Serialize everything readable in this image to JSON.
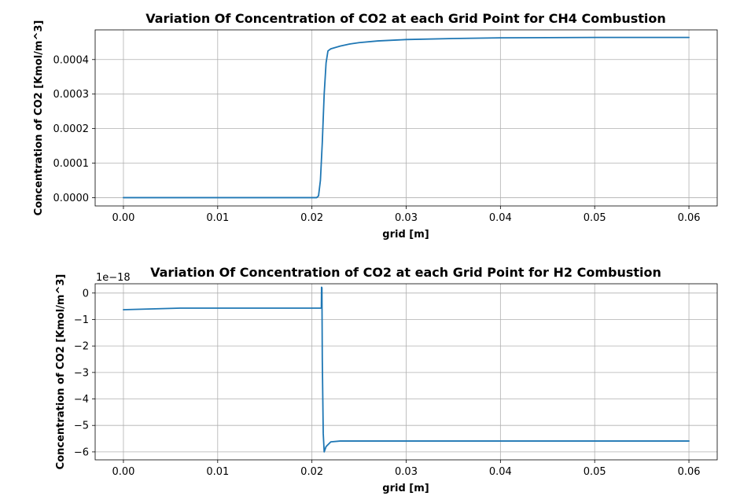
{
  "chart_data": [
    {
      "type": "line",
      "title": "Variation Of Concentration of CO2 at each Grid Point for CH4 Combustion",
      "xlabel": "grid [m]",
      "ylabel": "Concentration of CO2 [Kmol/m^3]",
      "xlim": [
        -0.003,
        0.063
      ],
      "ylim": [
        -2.4e-05,
        0.000486
      ],
      "xticks": [
        0.0,
        0.01,
        0.02,
        0.03,
        0.04,
        0.05,
        0.06
      ],
      "xtick_labels": [
        "0.00",
        "0.01",
        "0.02",
        "0.03",
        "0.04",
        "0.05",
        "0.06"
      ],
      "yticks": [
        0.0,
        0.0001,
        0.0002,
        0.0003,
        0.0004
      ],
      "ytick_labels": [
        "0.0000",
        "0.0001",
        "0.0002",
        "0.0003",
        "0.0004"
      ],
      "offset_text": "",
      "grid": true,
      "color": "#1f77b4",
      "series": [
        {
          "x": [
            0.0,
            0.005,
            0.01,
            0.015,
            0.02,
            0.0205,
            0.0207,
            0.0209,
            0.0211,
            0.0213,
            0.0215,
            0.0217,
            0.022,
            0.0225,
            0.023,
            0.024,
            0.025,
            0.027,
            0.03,
            0.035,
            0.04,
            0.05,
            0.06
          ],
          "y": [
            0.0,
            0.0,
            0.0,
            0.0,
            0.0,
            0.0,
            5e-06,
            5e-05,
            0.00016,
            0.0003,
            0.00039,
            0.000425,
            0.000431,
            0.000435,
            0.000439,
            0.000445,
            0.000449,
            0.000454,
            0.000458,
            0.000461,
            0.000463,
            0.000464,
            0.000464
          ]
        }
      ]
    },
    {
      "type": "line",
      "title": "Variation Of Concentration of CO2 at each Grid Point for H2 Combustion",
      "xlabel": "grid [m]",
      "ylabel": "Concentration of CO2 [Kmol/m^3]",
      "xlim": [
        -0.003,
        0.063
      ],
      "ylim": [
        -6.3,
        0.35
      ],
      "xticks": [
        0.0,
        0.01,
        0.02,
        0.03,
        0.04,
        0.05,
        0.06
      ],
      "xtick_labels": [
        "0.00",
        "0.01",
        "0.02",
        "0.03",
        "0.04",
        "0.05",
        "0.06"
      ],
      "yticks": [
        0,
        -1,
        -2,
        -3,
        -4,
        -5,
        -6
      ],
      "ytick_labels": [
        "0",
        "−1",
        "−2",
        "−3",
        "−4",
        "−5",
        "−6"
      ],
      "offset_text": "1e−18",
      "grid": true,
      "color": "#1f77b4",
      "series": [
        {
          "x": [
            0.0,
            0.003,
            0.006,
            0.01,
            0.015,
            0.02,
            0.0208,
            0.021,
            0.02102,
            0.02106,
            0.0211,
            0.0212,
            0.0213,
            0.0215,
            0.022,
            0.023,
            0.025,
            0.03,
            0.04,
            0.05,
            0.06
          ],
          "y": [
            -0.63,
            -0.6,
            -0.57,
            -0.57,
            -0.57,
            -0.57,
            -0.57,
            -0.57,
            0.22,
            0.2,
            -2.5,
            -5.3,
            -6.0,
            -5.8,
            -5.62,
            -5.59,
            -5.59,
            -5.59,
            -5.59,
            -5.59,
            -5.59
          ]
        }
      ]
    }
  ]
}
